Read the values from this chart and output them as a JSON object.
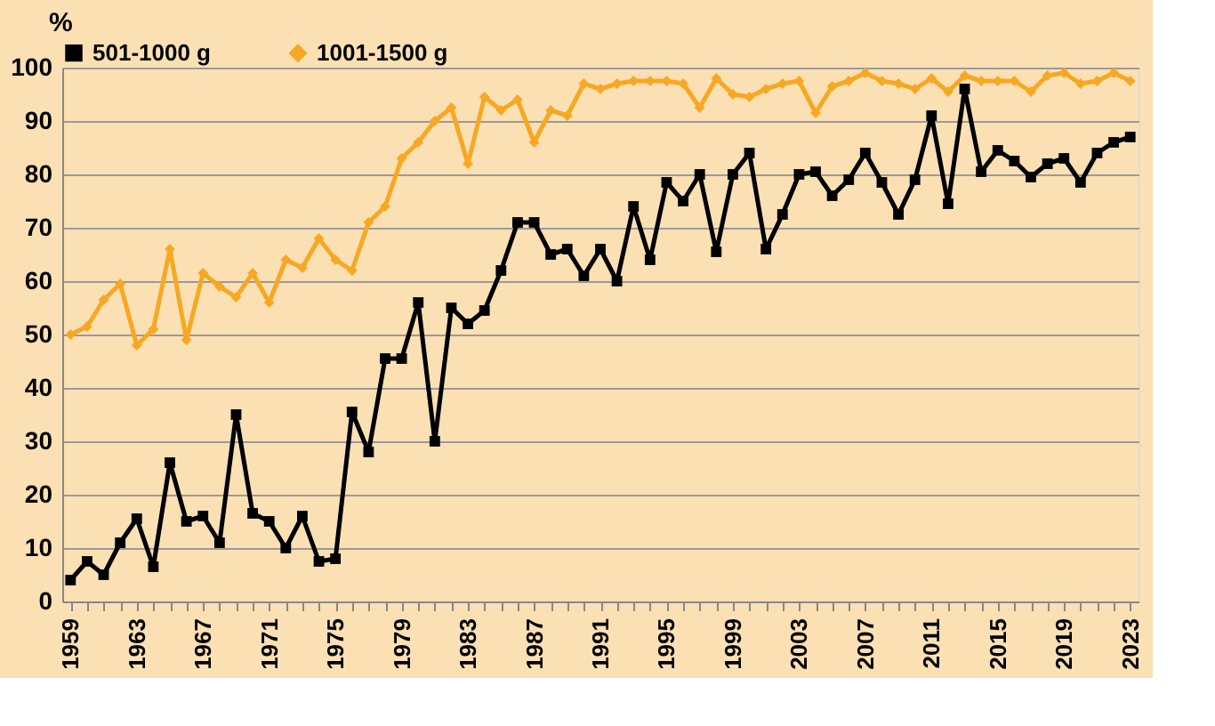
{
  "chart_data": {
    "type": "line",
    "ylabel": "%",
    "categories": [
      "1959",
      null,
      null,
      null,
      "1963",
      null,
      null,
      null,
      "1967",
      null,
      null,
      null,
      "1971",
      null,
      null,
      null,
      "1975",
      null,
      null,
      null,
      "1979",
      null,
      null,
      null,
      "1983",
      null,
      null,
      null,
      "1987",
      null,
      null,
      null,
      "1991",
      null,
      null,
      null,
      "1995",
      null,
      null,
      null,
      "1999",
      null,
      null,
      null,
      "2003",
      null,
      null,
      null,
      "2007",
      null,
      null,
      null,
      "2011",
      null,
      null,
      null,
      "2015",
      null,
      null,
      null,
      "2019",
      null,
      null,
      null,
      "2023"
    ],
    "series": [
      {
        "name": "501-1000 g",
        "color": "#000000",
        "marker": "square",
        "values": [
          4,
          7.5,
          5,
          11,
          15.5,
          6.5,
          26,
          15,
          16,
          11,
          35,
          16.5,
          15,
          10,
          16,
          7.5,
          8,
          35.5,
          28,
          45.5,
          45.5,
          56,
          30,
          55,
          52,
          54.5,
          62,
          71,
          71,
          65,
          66,
          61,
          66,
          60,
          74,
          64,
          78.5,
          75,
          80,
          65.5,
          80,
          84,
          66,
          72.5,
          80,
          80.5,
          76,
          79,
          84,
          78.5,
          72.5,
          79,
          91,
          74.5,
          96,
          80.5,
          84.5,
          82.5,
          79.5,
          82,
          83,
          78.5,
          84,
          86,
          87
        ]
      },
      {
        "name": "1001-1500 g",
        "color": "#f7a823",
        "marker": "diamond",
        "values": [
          50,
          51.5,
          56.5,
          59.5,
          48,
          51,
          66,
          49,
          61.5,
          59,
          57,
          61.5,
          56,
          64,
          62.5,
          68,
          64,
          62,
          71,
          74,
          83,
          86,
          90,
          92.5,
          82,
          94.5,
          92,
          94,
          86,
          92,
          91,
          97,
          96,
          97,
          97.5,
          97.5,
          97.5,
          97,
          92.5,
          98,
          95,
          94.5,
          96,
          97,
          97.5,
          91.5,
          96.5,
          97.5,
          99,
          97.5,
          97,
          96,
          98,
          95.5,
          98.5,
          97.5,
          97.5,
          97.5,
          95.5,
          98.5,
          99,
          97,
          97.5,
          99,
          97.5
        ]
      }
    ],
    "ylim": [
      0,
      100
    ],
    "yticks": [
      0,
      10,
      20,
      30,
      40,
      50,
      60,
      70,
      80,
      90,
      100
    ],
    "grid": "y",
    "legend": "top",
    "line_style": "solid"
  }
}
